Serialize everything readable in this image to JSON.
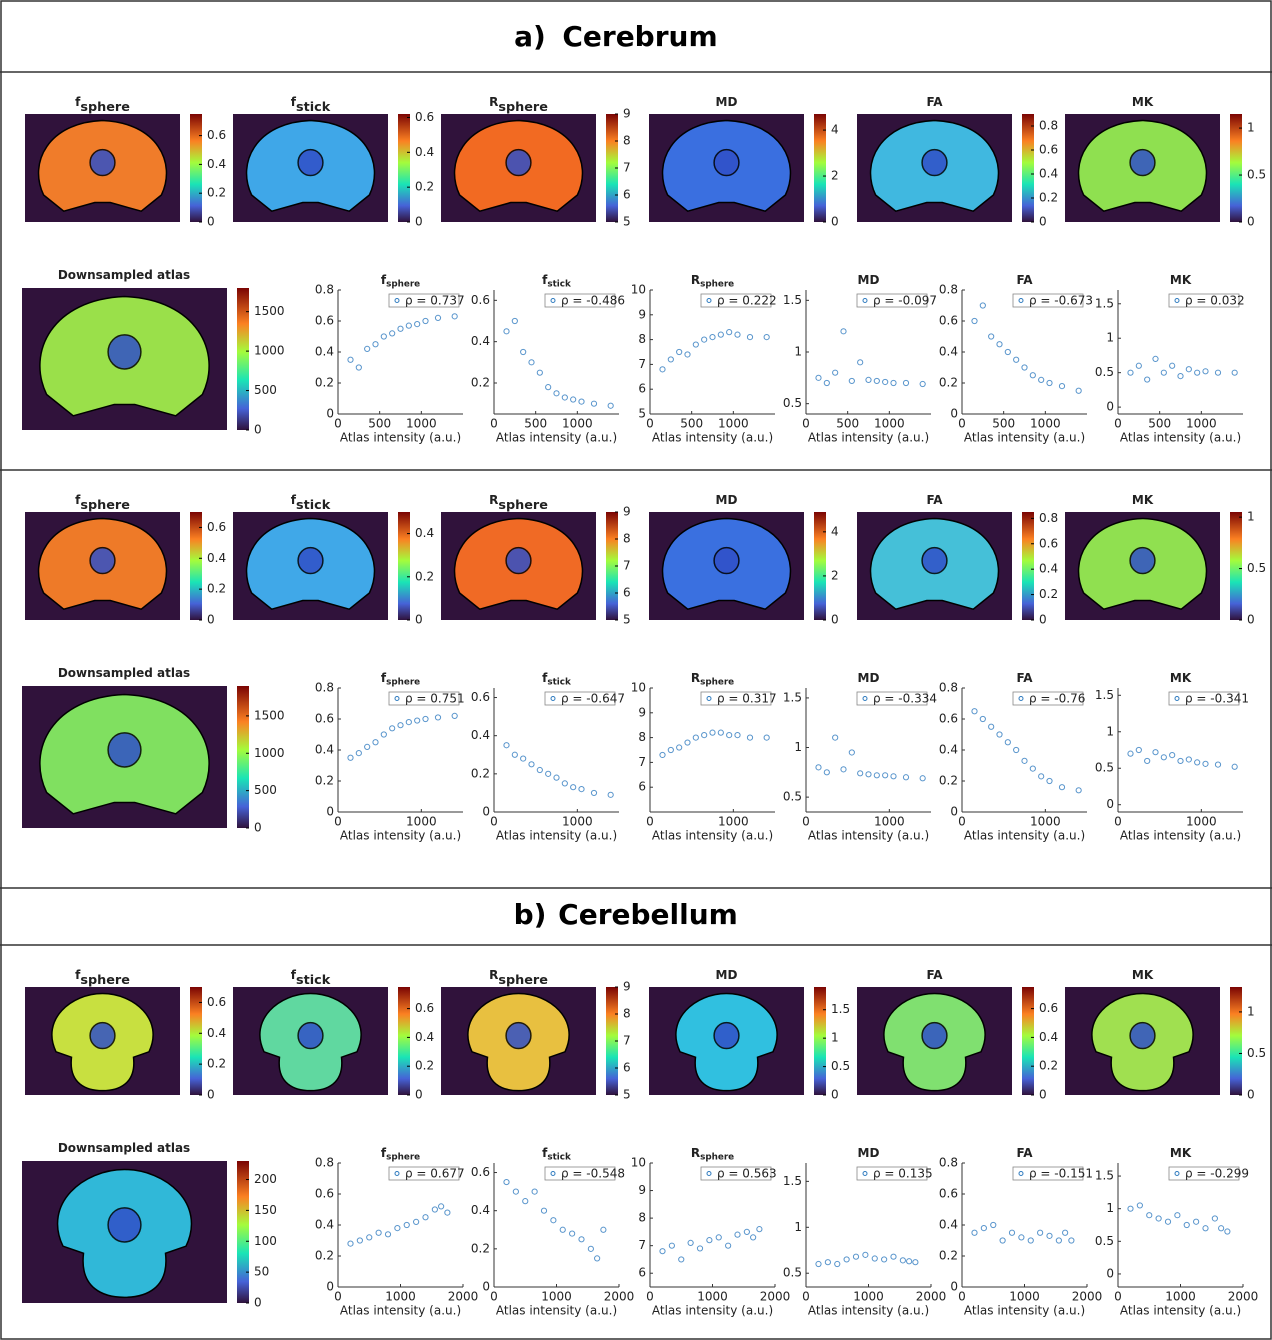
{
  "panels": [
    {
      "label": "a)",
      "title": "Cerebrum"
    },
    {
      "label": "b)",
      "title": "Cerebellum"
    }
  ],
  "chart_data": [
    {
      "type": "image",
      "title": "f",
      "subscript": "sphere",
      "color": "#f07c2a",
      "clim": [
        0,
        0.75
      ],
      "cticks": [
        0,
        0.2,
        0.4,
        0.6
      ]
    },
    {
      "type": "image",
      "title": "f",
      "subscript": "stick",
      "color": "#3fa7e8",
      "clim": [
        0,
        0.62
      ],
      "cticks": [
        0,
        0.2,
        0.4,
        0.6
      ]
    },
    {
      "type": "image",
      "title": "R",
      "subscript": "sphere",
      "color": "#f26a22",
      "clim": [
        5,
        9
      ],
      "cticks": [
        5,
        6,
        7,
        8,
        9
      ]
    },
    {
      "type": "image",
      "title": "MD",
      "color": "#3a6fe0",
      "clim": [
        0,
        4.7
      ],
      "cticks": [
        0,
        2,
        4
      ]
    },
    {
      "type": "image",
      "title": "FA",
      "color": "#40b8e0",
      "clim": [
        0,
        0.9
      ],
      "cticks": [
        0,
        0.2,
        0.4,
        0.6,
        0.8
      ]
    },
    {
      "type": "image",
      "title": "MK",
      "color": "#8fe050",
      "clim": [
        0,
        1.15
      ],
      "cticks": [
        0,
        0.5,
        1
      ]
    },
    {
      "type": "image",
      "title": "Downsampled atlas",
      "color": "#9ae04a",
      "clim": [
        0,
        1800
      ],
      "cticks": [
        0,
        500,
        1000,
        1500
      ]
    },
    {
      "type": "scatter",
      "title": "f",
      "subscript": "sphere",
      "legend": "ρ = 0.737",
      "xlabel": "Atlas intensity (a.u.)",
      "color": "#2f7bbf",
      "xlim": [
        0,
        1500
      ],
      "xticks": [
        0,
        500,
        1000
      ],
      "ylim": [
        0,
        0.8
      ],
      "yticks": [
        0,
        0.2,
        0.4,
        0.6,
        0.8
      ],
      "x": [
        150,
        250,
        350,
        450,
        550,
        650,
        750,
        850,
        950,
        1050,
        1200,
        1400
      ],
      "values": [
        0.35,
        0.3,
        0.42,
        0.45,
        0.5,
        0.52,
        0.55,
        0.57,
        0.58,
        0.6,
        0.62,
        0.63
      ]
    },
    {
      "type": "scatter",
      "title": "f",
      "subscript": "stick",
      "legend": "ρ = -0.486",
      "xlabel": "Atlas intensity (a.u.)",
      "color": "#2f7bbf",
      "xlim": [
        0,
        1500
      ],
      "xticks": [
        0,
        500,
        1000
      ],
      "ylim": [
        0.05,
        0.65
      ],
      "yticks": [
        0.2,
        0.4,
        0.6
      ],
      "x": [
        150,
        250,
        350,
        450,
        550,
        650,
        750,
        850,
        950,
        1050,
        1200,
        1400
      ],
      "values": [
        0.45,
        0.5,
        0.35,
        0.3,
        0.25,
        0.18,
        0.15,
        0.13,
        0.12,
        0.11,
        0.1,
        0.09
      ]
    },
    {
      "type": "scatter",
      "title": "R",
      "subscript": "sphere",
      "legend": "ρ = 0.222",
      "xlabel": "Atlas intensity (a.u.)",
      "color": "#2f7bbf",
      "xlim": [
        0,
        1500
      ],
      "xticks": [
        0,
        500,
        1000
      ],
      "ylim": [
        5,
        10
      ],
      "yticks": [
        5,
        6,
        7,
        8,
        9,
        10
      ],
      "x": [
        150,
        250,
        350,
        450,
        550,
        650,
        750,
        850,
        950,
        1050,
        1200,
        1400
      ],
      "values": [
        6.8,
        7.2,
        7.5,
        7.4,
        7.8,
        8,
        8.1,
        8.2,
        8.3,
        8.2,
        8.1,
        8.1
      ]
    },
    {
      "type": "scatter",
      "title": "MD",
      "legend": "ρ = -0.097",
      "xlabel": "Atlas intensity (a.u.)",
      "color": "#2f7bbf",
      "xlim": [
        0,
        1500
      ],
      "xticks": [
        0,
        500,
        1000
      ],
      "ylim": [
        0.4,
        1.6
      ],
      "yticks": [
        0.5,
        1,
        1.5
      ],
      "x": [
        150,
        250,
        350,
        450,
        550,
        650,
        750,
        850,
        950,
        1050,
        1200,
        1400
      ],
      "values": [
        0.75,
        0.7,
        0.8,
        1.2,
        0.72,
        0.9,
        0.73,
        0.72,
        0.71,
        0.7,
        0.7,
        0.69
      ]
    },
    {
      "type": "scatter",
      "title": "FA",
      "legend": "ρ = -0.673",
      "xlabel": "Atlas intensity (a.u.)",
      "color": "#2f7bbf",
      "xlim": [
        0,
        1500
      ],
      "xticks": [
        0,
        500,
        1000
      ],
      "ylim": [
        0,
        0.8
      ],
      "yticks": [
        0,
        0.2,
        0.4,
        0.6,
        0.8
      ],
      "x": [
        150,
        250,
        350,
        450,
        550,
        650,
        750,
        850,
        950,
        1050,
        1200,
        1400
      ],
      "values": [
        0.6,
        0.7,
        0.5,
        0.45,
        0.4,
        0.35,
        0.3,
        0.25,
        0.22,
        0.2,
        0.18,
        0.15
      ]
    },
    {
      "type": "scatter",
      "title": "MK",
      "legend": "ρ = 0.032",
      "xlabel": "Atlas intensity (a.u.)",
      "color": "#2f7bbf",
      "xlim": [
        0,
        1500
      ],
      "xticks": [
        0,
        500,
        1000
      ],
      "ylim": [
        -0.1,
        1.7
      ],
      "yticks": [
        0,
        0.5,
        1,
        1.5
      ],
      "x": [
        150,
        250,
        350,
        450,
        550,
        650,
        750,
        850,
        950,
        1050,
        1200,
        1400
      ],
      "values": [
        0.5,
        0.6,
        0.4,
        0.7,
        0.5,
        0.6,
        0.45,
        0.55,
        0.5,
        0.52,
        0.5,
        0.5
      ]
    },
    {
      "type": "image",
      "title": "f",
      "subscript": "sphere",
      "color": "#ee7a28",
      "clim": [
        0,
        0.7
      ],
      "cticks": [
        0,
        0.2,
        0.4,
        0.6
      ]
    },
    {
      "type": "image",
      "title": "f",
      "subscript": "stick",
      "color": "#40a8e8",
      "clim": [
        0,
        0.5
      ],
      "cticks": [
        0,
        0.2,
        0.4
      ]
    },
    {
      "type": "image",
      "title": "R",
      "subscript": "sphere",
      "color": "#f06a25",
      "clim": [
        5,
        9
      ],
      "cticks": [
        5,
        6,
        7,
        8,
        9
      ]
    },
    {
      "type": "image",
      "title": "MD",
      "color": "#3a70e0",
      "clim": [
        0,
        4.9
      ],
      "cticks": [
        0,
        2,
        4
      ]
    },
    {
      "type": "image",
      "title": "FA",
      "color": "#45c0d8",
      "clim": [
        0,
        0.85
      ],
      "cticks": [
        0,
        0.2,
        0.4,
        0.6,
        0.8
      ]
    },
    {
      "type": "image",
      "title": "MK",
      "color": "#90e050",
      "clim": [
        0,
        1.05
      ],
      "cticks": [
        0,
        0.5,
        1
      ]
    },
    {
      "type": "image",
      "title": "Downsampled atlas",
      "color": "#80e060",
      "clim": [
        0,
        1900
      ],
      "cticks": [
        0,
        500,
        1000,
        1500
      ]
    },
    {
      "type": "scatter",
      "title": "f",
      "subscript": "sphere",
      "legend": "ρ = 0.751",
      "xlabel": "Atlas intensity (a.u.)",
      "color": "#2f7bbf",
      "xlim": [
        0,
        1500
      ],
      "xticks": [
        0,
        1000
      ],
      "ylim": [
        0,
        0.8
      ],
      "yticks": [
        0,
        0.2,
        0.4,
        0.6,
        0.8
      ],
      "x": [
        150,
        250,
        350,
        450,
        550,
        650,
        750,
        850,
        950,
        1050,
        1200,
        1400
      ],
      "values": [
        0.35,
        0.38,
        0.42,
        0.45,
        0.5,
        0.54,
        0.56,
        0.58,
        0.59,
        0.6,
        0.61,
        0.62
      ]
    },
    {
      "type": "scatter",
      "title": "f",
      "subscript": "stick",
      "legend": "ρ = -0.647",
      "xlabel": "Atlas intensity (a.u.)",
      "color": "#2f7bbf",
      "xlim": [
        0,
        1500
      ],
      "xticks": [
        0,
        1000
      ],
      "ylim": [
        0,
        0.65
      ],
      "yticks": [
        0,
        0.2,
        0.4,
        0.6
      ],
      "x": [
        150,
        250,
        350,
        450,
        550,
        650,
        750,
        850,
        950,
        1050,
        1200,
        1400
      ],
      "values": [
        0.35,
        0.3,
        0.28,
        0.25,
        0.22,
        0.2,
        0.18,
        0.15,
        0.13,
        0.12,
        0.1,
        0.09
      ]
    },
    {
      "type": "scatter",
      "title": "R",
      "subscript": "sphere",
      "legend": "ρ = 0.317",
      "xlabel": "Atlas intensity (a.u.)",
      "color": "#2f7bbf",
      "xlim": [
        0,
        1500
      ],
      "xticks": [
        0,
        1000
      ],
      "ylim": [
        5,
        10
      ],
      "yticks": [
        6,
        7,
        8,
        9,
        10
      ],
      "x": [
        150,
        250,
        350,
        450,
        550,
        650,
        750,
        850,
        950,
        1050,
        1200,
        1400
      ],
      "values": [
        7.3,
        7.5,
        7.6,
        7.8,
        8,
        8.1,
        8.2,
        8.2,
        8.1,
        8.1,
        8,
        8
      ]
    },
    {
      "type": "scatter",
      "title": "MD",
      "legend": "ρ = -0.334",
      "xlabel": "Atlas intensity (a.u.)",
      "color": "#2f7bbf",
      "xlim": [
        0,
        1500
      ],
      "xticks": [
        0,
        1000
      ],
      "ylim": [
        0.35,
        1.6
      ],
      "yticks": [
        0.5,
        1,
        1.5
      ],
      "x": [
        150,
        250,
        350,
        450,
        550,
        650,
        750,
        850,
        950,
        1050,
        1200,
        1400
      ],
      "values": [
        0.8,
        0.75,
        1.1,
        0.78,
        0.95,
        0.74,
        0.73,
        0.72,
        0.72,
        0.71,
        0.7,
        0.69
      ]
    },
    {
      "type": "scatter",
      "title": "FA",
      "legend": "ρ = -0.76",
      "xlabel": "Atlas intensity (a.u.)",
      "color": "#2f7bbf",
      "xlim": [
        0,
        1500
      ],
      "xticks": [
        0,
        1000
      ],
      "ylim": [
        0,
        0.8
      ],
      "yticks": [
        0,
        0.2,
        0.4,
        0.6,
        0.8
      ],
      "x": [
        150,
        250,
        350,
        450,
        550,
        650,
        750,
        850,
        950,
        1050,
        1200,
        1400
      ],
      "values": [
        0.65,
        0.6,
        0.55,
        0.5,
        0.45,
        0.4,
        0.33,
        0.28,
        0.23,
        0.2,
        0.16,
        0.14
      ]
    },
    {
      "type": "scatter",
      "title": "MK",
      "legend": "ρ = -0.341",
      "xlabel": "Atlas intensity (a.u.)",
      "color": "#2f7bbf",
      "xlim": [
        0,
        1500
      ],
      "xticks": [
        0,
        1000
      ],
      "ylim": [
        -0.1,
        1.6
      ],
      "yticks": [
        0,
        0.5,
        1,
        1.5
      ],
      "x": [
        150,
        250,
        350,
        450,
        550,
        650,
        750,
        850,
        950,
        1050,
        1200,
        1400
      ],
      "values": [
        0.7,
        0.75,
        0.6,
        0.72,
        0.65,
        0.68,
        0.6,
        0.62,
        0.58,
        0.56,
        0.55,
        0.52
      ]
    },
    {
      "type": "image",
      "title": "f",
      "subscript": "sphere",
      "color": "#c8e040",
      "clim": [
        0,
        0.7
      ],
      "cticks": [
        0,
        0.2,
        0.4,
        0.6
      ]
    },
    {
      "type": "image",
      "title": "f",
      "subscript": "stick",
      "color": "#60d8a0",
      "clim": [
        0,
        0.75
      ],
      "cticks": [
        0,
        0.2,
        0.4,
        0.6
      ]
    },
    {
      "type": "image",
      "title": "R",
      "subscript": "sphere",
      "color": "#e8c040",
      "clim": [
        5,
        9
      ],
      "cticks": [
        5,
        6,
        7,
        8,
        9
      ]
    },
    {
      "type": "image",
      "title": "MD",
      "color": "#30c0e0",
      "clim": [
        0,
        1.9
      ],
      "cticks": [
        0,
        0.5,
        1,
        1.5
      ]
    },
    {
      "type": "image",
      "title": "FA",
      "color": "#80e070",
      "clim": [
        0,
        0.75
      ],
      "cticks": [
        0,
        0.2,
        0.4,
        0.6
      ]
    },
    {
      "type": "image",
      "title": "MK",
      "color": "#a0e050",
      "clim": [
        0,
        1.3
      ],
      "cticks": [
        0,
        0.5,
        1
      ]
    },
    {
      "type": "image",
      "title": "Downsampled atlas",
      "color": "#30b8d8",
      "clim": [
        0,
        230
      ],
      "cticks": [
        0,
        50,
        100,
        150,
        200
      ]
    },
    {
      "type": "scatter",
      "title": "f",
      "subscript": "sphere",
      "legend": "ρ = 0.677",
      "xlabel": "Atlas intensity (a.u.)",
      "color": "#2f7bbf",
      "xlim": [
        0,
        2000
      ],
      "xticks": [
        0,
        1000,
        2000
      ],
      "ylim": [
        0,
        0.8
      ],
      "yticks": [
        0,
        0.2,
        0.4,
        0.6,
        0.8
      ],
      "x": [
        200,
        350,
        500,
        650,
        800,
        950,
        1100,
        1250,
        1400,
        1550,
        1650,
        1750
      ],
      "values": [
        0.28,
        0.3,
        0.32,
        0.35,
        0.34,
        0.38,
        0.4,
        0.42,
        0.45,
        0.5,
        0.52,
        0.48
      ]
    },
    {
      "type": "scatter",
      "title": "f",
      "subscript": "stick",
      "legend": "ρ = -0.548",
      "xlabel": "Atlas intensity (a.u.)",
      "color": "#2f7bbf",
      "xlim": [
        0,
        2000
      ],
      "xticks": [
        0,
        1000,
        2000
      ],
      "ylim": [
        0,
        0.65
      ],
      "yticks": [
        0,
        0.2,
        0.4,
        0.6
      ],
      "x": [
        200,
        350,
        500,
        650,
        800,
        950,
        1100,
        1250,
        1400,
        1550,
        1650,
        1750
      ],
      "values": [
        0.55,
        0.5,
        0.45,
        0.5,
        0.4,
        0.35,
        0.3,
        0.28,
        0.25,
        0.2,
        0.15,
        0.3
      ]
    },
    {
      "type": "scatter",
      "title": "R",
      "subscript": "sphere",
      "legend": "ρ = 0.563",
      "xlabel": "Atlas intensity (a.u.)",
      "color": "#2f7bbf",
      "xlim": [
        0,
        2000
      ],
      "xticks": [
        0,
        1000,
        2000
      ],
      "ylim": [
        5.5,
        10
      ],
      "yticks": [
        6,
        7,
        8,
        9,
        10
      ],
      "x": [
        200,
        350,
        500,
        650,
        800,
        950,
        1100,
        1250,
        1400,
        1550,
        1650,
        1750
      ],
      "values": [
        6.8,
        7,
        6.5,
        7.1,
        6.9,
        7.2,
        7.3,
        7,
        7.4,
        7.5,
        7.3,
        7.6
      ]
    },
    {
      "type": "scatter",
      "title": "MD",
      "legend": "ρ = 0.135",
      "xlabel": "Atlas intensity (a.u.)",
      "color": "#2f7bbf",
      "xlim": [
        0,
        2000
      ],
      "xticks": [
        0,
        1000,
        2000
      ],
      "ylim": [
        0.35,
        1.7
      ],
      "yticks": [
        0.5,
        1,
        1.5
      ],
      "x": [
        200,
        350,
        500,
        650,
        800,
        950,
        1100,
        1250,
        1400,
        1550,
        1650,
        1750
      ],
      "values": [
        0.6,
        0.62,
        0.6,
        0.65,
        0.68,
        0.7,
        0.66,
        0.65,
        0.68,
        0.64,
        0.63,
        0.62
      ]
    },
    {
      "type": "scatter",
      "title": "FA",
      "legend": "ρ = -0.151",
      "xlabel": "Atlas intensity (a.u.)",
      "color": "#2f7bbf",
      "xlim": [
        0,
        2000
      ],
      "xticks": [
        0,
        1000,
        2000
      ],
      "ylim": [
        0,
        0.8
      ],
      "yticks": [
        0,
        0.2,
        0.4,
        0.6,
        0.8
      ],
      "x": [
        200,
        350,
        500,
        650,
        800,
        950,
        1100,
        1250,
        1400,
        1550,
        1650,
        1750
      ],
      "values": [
        0.35,
        0.38,
        0.4,
        0.3,
        0.35,
        0.32,
        0.3,
        0.35,
        0.33,
        0.3,
        0.35,
        0.3
      ]
    },
    {
      "type": "scatter",
      "title": "MK",
      "legend": "ρ = -0.299",
      "xlabel": "Atlas intensity (a.u.)",
      "color": "#2f7bbf",
      "xlim": [
        0,
        2000
      ],
      "xticks": [
        0,
        1000,
        2000
      ],
      "ylim": [
        -0.2,
        1.7
      ],
      "yticks": [
        0,
        0.5,
        1,
        1.5
      ],
      "x": [
        200,
        350,
        500,
        650,
        800,
        950,
        1100,
        1250,
        1400,
        1550,
        1650,
        1750
      ],
      "values": [
        1,
        1.05,
        0.9,
        0.85,
        0.8,
        0.9,
        0.75,
        0.8,
        0.7,
        0.85,
        0.7,
        0.65
      ]
    }
  ]
}
